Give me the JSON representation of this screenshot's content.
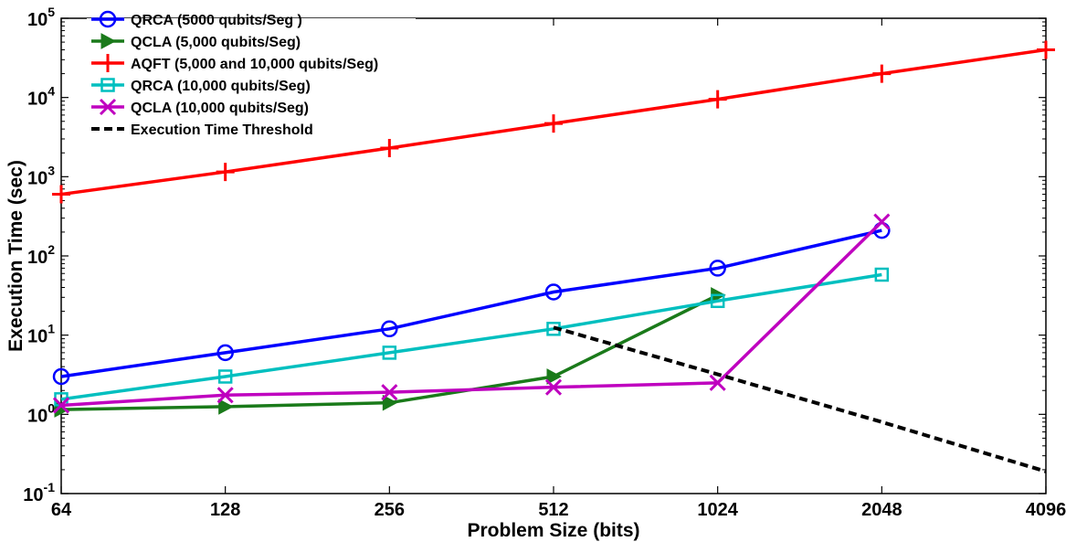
{
  "chart_data": {
    "type": "line",
    "title": "",
    "xlabel": "Problem Size (bits)",
    "ylabel": "Execution Time (sec)",
    "x_scale": "log2",
    "y_scale": "log10",
    "categories": [
      "64",
      "128",
      "256",
      "512",
      "1024",
      "2048",
      "4096"
    ],
    "x": [
      64,
      128,
      256,
      512,
      1024,
      2048,
      4096
    ],
    "xlim": [
      64,
      4096
    ],
    "ylim": [
      0.1,
      100000
    ],
    "y_ticks": [
      {
        "base": "10",
        "exp": "-1"
      },
      {
        "base": "10",
        "exp": "0"
      },
      {
        "base": "10",
        "exp": "1"
      },
      {
        "base": "10",
        "exp": "2"
      },
      {
        "base": "10",
        "exp": "3"
      },
      {
        "base": "10",
        "exp": "4"
      },
      {
        "base": "10",
        "exp": "5"
      }
    ],
    "grid": false,
    "legend_position": "top-left",
    "series": [
      {
        "name": "QRCA (5000 qubits/Seg )",
        "color": "#0000ff",
        "marker": "circle",
        "dash": false,
        "x": [
          64,
          128,
          256,
          512,
          1024,
          2048
        ],
        "values": [
          3,
          6,
          12,
          35,
          70,
          210
        ]
      },
      {
        "name": "QCLA (5,000 qubits/Seg)",
        "color": "#1a7a1a",
        "marker": "triangle-right",
        "dash": false,
        "x": [
          64,
          128,
          256,
          512,
          1024
        ],
        "values": [
          1.15,
          1.25,
          1.4,
          3,
          32
        ]
      },
      {
        "name": "AQFT (5,000 and 10,000 qubits/Seg)",
        "color": "#ff0000",
        "marker": "plus",
        "dash": false,
        "x": [
          64,
          128,
          256,
          512,
          1024,
          2048,
          4096
        ],
        "values": [
          600,
          1150,
          2300,
          4700,
          9500,
          20000,
          40000
        ]
      },
      {
        "name": "QRCA (10,000 qubits/Seg)",
        "color": "#00bfbf",
        "marker": "square",
        "dash": false,
        "x": [
          64,
          128,
          256,
          512,
          1024,
          2048
        ],
        "values": [
          1.55,
          3,
          6,
          12,
          27,
          58
        ]
      },
      {
        "name": "QCLA (10,000 qubits/Seg)",
        "color": "#bf00bf",
        "marker": "x",
        "dash": false,
        "x": [
          64,
          128,
          256,
          512,
          1024,
          2048
        ],
        "values": [
          1.3,
          1.75,
          1.9,
          2.2,
          2.5,
          270
        ]
      },
      {
        "name": "Execution Time Threshold",
        "color": "#000000",
        "marker": "none",
        "dash": true,
        "x": [
          512,
          1024,
          2048,
          4096
        ],
        "values": [
          12.5,
          3.2,
          0.8,
          0.19
        ]
      }
    ]
  }
}
